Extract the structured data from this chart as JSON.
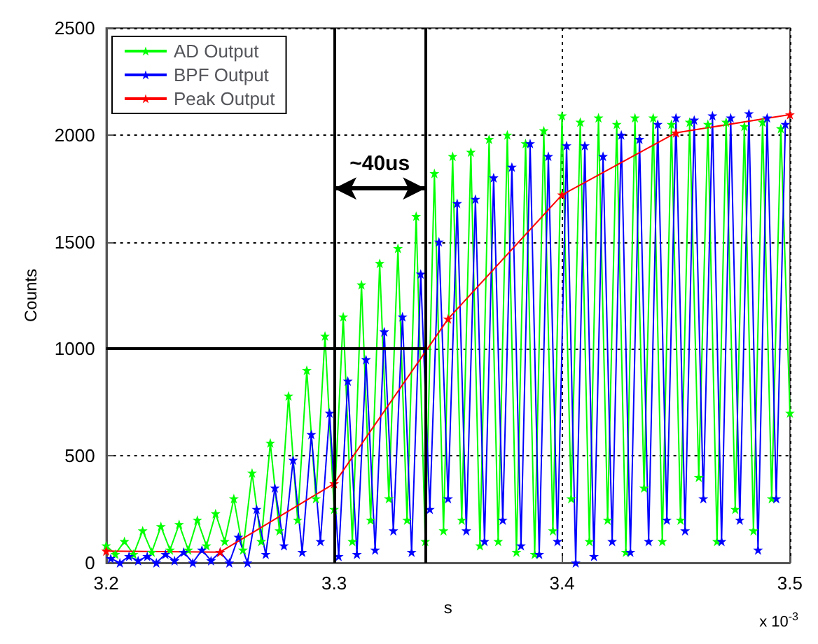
{
  "chart_data": {
    "type": "line",
    "xlabel": "s",
    "ylabel": "Counts",
    "xlim": [
      3.2,
      3.5
    ],
    "xticks": [
      3.2,
      3.3,
      3.4,
      3.5
    ],
    "ylim": [
      0,
      2500
    ],
    "yticks": [
      0,
      500,
      1000,
      1500,
      2000,
      2500
    ],
    "grid": true,
    "legend": "top left",
    "marker": "star",
    "series": [
      {
        "name": "AD Output",
        "color": "#00ff00",
        "x": [
          3.2,
          3.204,
          3.208,
          3.212,
          3.216,
          3.22,
          3.224,
          3.228,
          3.232,
          3.236,
          3.24,
          3.244,
          3.248,
          3.252,
          3.256,
          3.26,
          3.264,
          3.268,
          3.272,
          3.276,
          3.28,
          3.284,
          3.288,
          3.292,
          3.296,
          3.3,
          3.304,
          3.308,
          3.312,
          3.316,
          3.32,
          3.324,
          3.328,
          3.332,
          3.336,
          3.34,
          3.344,
          3.348,
          3.352,
          3.356,
          3.36,
          3.364,
          3.368,
          3.372,
          3.376,
          3.38,
          3.384,
          3.388,
          3.392,
          3.396,
          3.4,
          3.404,
          3.408,
          3.412,
          3.416,
          3.42,
          3.424,
          3.428,
          3.432,
          3.436,
          3.44,
          3.444,
          3.448,
          3.452,
          3.456,
          3.46,
          3.464,
          3.468,
          3.472,
          3.476,
          3.48,
          3.484,
          3.488,
          3.492,
          3.496,
          3.5
        ],
        "values": [
          80,
          40,
          100,
          40,
          150,
          50,
          170,
          60,
          180,
          60,
          200,
          80,
          230,
          100,
          300,
          60,
          420,
          100,
          560,
          150,
          780,
          200,
          900,
          300,
          1060,
          250,
          1150,
          100,
          1300,
          200,
          1400,
          300,
          1470,
          200,
          1620,
          100,
          1820,
          150,
          1900,
          200,
          1920,
          80,
          1980,
          100,
          2000,
          50,
          1960,
          40,
          2020,
          150,
          2090,
          300,
          2060,
          100,
          2080,
          200,
          2050,
          50,
          2080,
          350,
          2080,
          100,
          2050,
          200,
          2060,
          400,
          2050,
          100,
          2060,
          250,
          2040,
          150,
          2060,
          300,
          2030,
          700
        ]
      },
      {
        "name": "BPF Output",
        "color": "#0000ff",
        "x": [
          3.202,
          3.206,
          3.21,
          3.214,
          3.218,
          3.222,
          3.226,
          3.23,
          3.234,
          3.238,
          3.242,
          3.246,
          3.25,
          3.254,
          3.258,
          3.262,
          3.266,
          3.27,
          3.274,
          3.278,
          3.282,
          3.286,
          3.29,
          3.294,
          3.298,
          3.302,
          3.306,
          3.31,
          3.314,
          3.318,
          3.322,
          3.326,
          3.33,
          3.334,
          3.338,
          3.342,
          3.346,
          3.35,
          3.354,
          3.358,
          3.362,
          3.366,
          3.37,
          3.374,
          3.378,
          3.382,
          3.386,
          3.39,
          3.394,
          3.398,
          3.402,
          3.406,
          3.41,
          3.414,
          3.418,
          3.422,
          3.426,
          3.43,
          3.434,
          3.438,
          3.442,
          3.446,
          3.45,
          3.454,
          3.458,
          3.462,
          3.466,
          3.47,
          3.474,
          3.478,
          3.482,
          3.486,
          3.49,
          3.494,
          3.498
        ],
        "values": [
          20,
          0,
          30,
          10,
          30,
          0,
          40,
          10,
          50,
          0,
          60,
          10,
          50,
          0,
          120,
          0,
          250,
          40,
          350,
          80,
          480,
          50,
          600,
          100,
          700,
          30,
          850,
          40,
          950,
          60,
          1080,
          150,
          1150,
          50,
          1350,
          250,
          1500,
          300,
          1680,
          150,
          1700,
          100,
          1800,
          200,
          1850,
          80,
          1960,
          40,
          1900,
          100,
          1950,
          0,
          1950,
          30,
          1900,
          100,
          2000,
          50,
          1980,
          100,
          2050,
          200,
          2080,
          150,
          2070,
          300,
          2090,
          100,
          2080,
          200,
          2100,
          60,
          2080,
          300,
          2050
        ]
      },
      {
        "name": "Peak Output",
        "color": "#ff0000",
        "x": [
          3.2,
          3.25,
          3.3,
          3.35,
          3.4,
          3.45,
          3.5
        ],
        "values": [
          55,
          50,
          370,
          1140,
          1720,
          2010,
          2095
        ]
      }
    ],
    "ref_lines": [
      {
        "axis": "y",
        "value": 1000,
        "color": "#000000"
      },
      {
        "axis": "x",
        "value": 3.3,
        "color": "#000000"
      },
      {
        "axis": "x",
        "value": 3.34,
        "color": "#000000"
      }
    ],
    "annotations": [
      "~40us",
      "x 10$^{-3}$"
    ]
  }
}
